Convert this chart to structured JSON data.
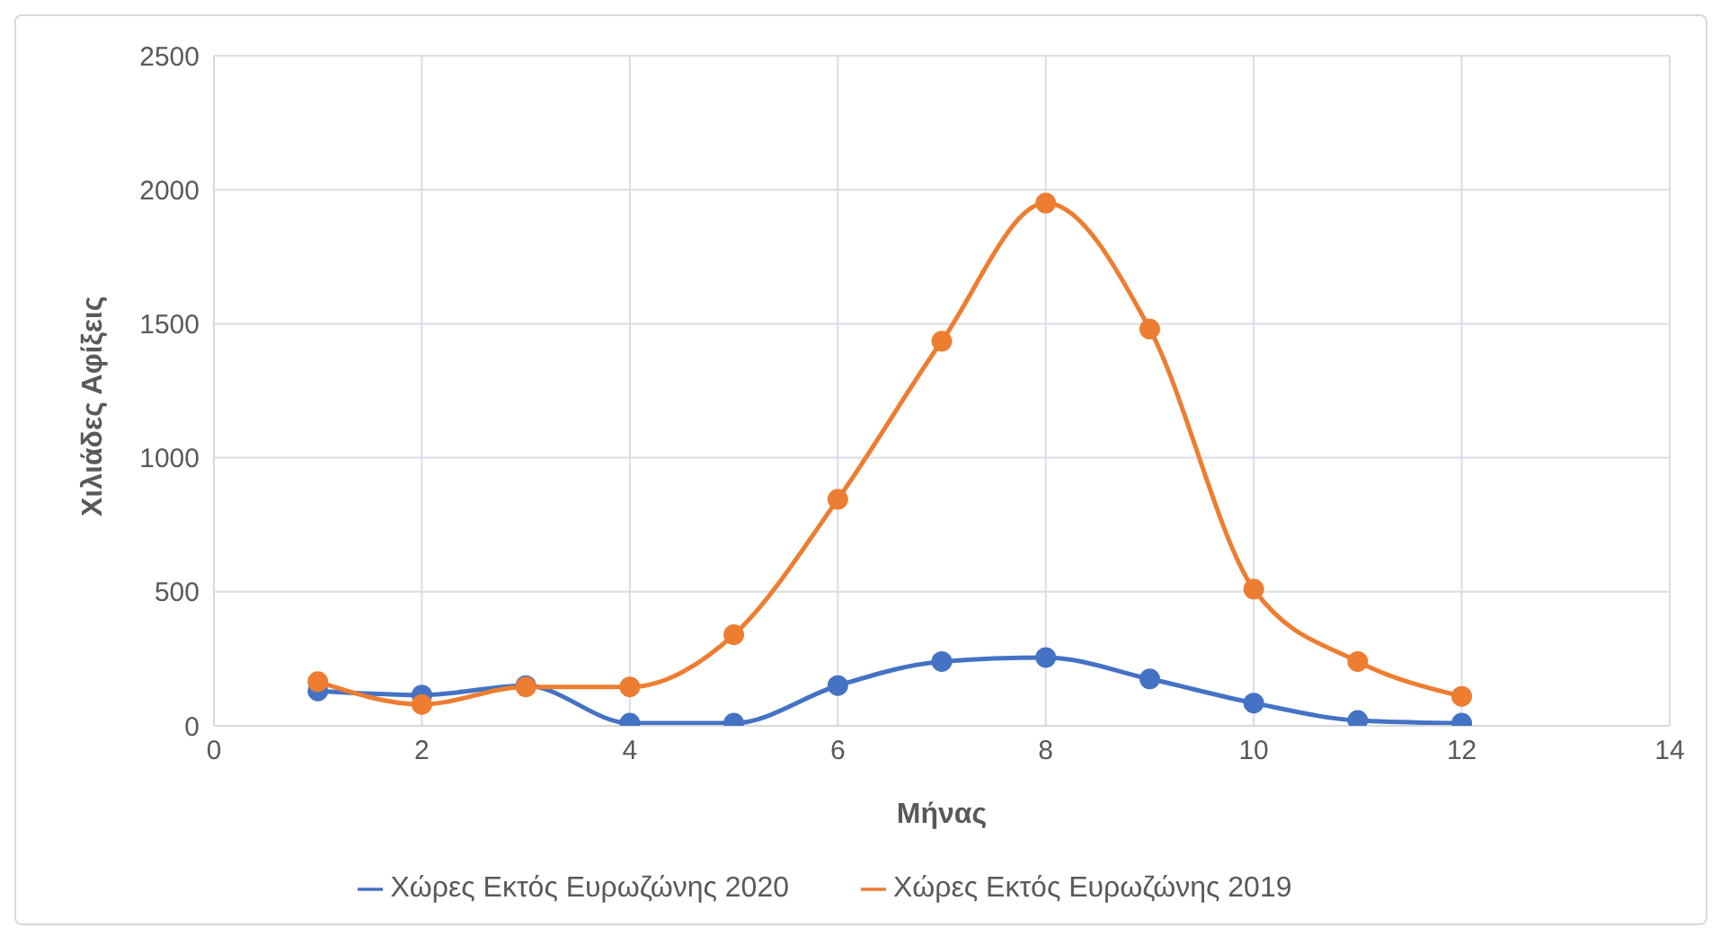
{
  "chart_data": {
    "type": "line",
    "xlabel": "Μήνας",
    "ylabel": "Χιλιάδες Αφίξεις",
    "x": [
      1,
      2,
      3,
      4,
      5,
      6,
      7,
      8,
      9,
      10,
      11,
      12
    ],
    "series": [
      {
        "name": "Χώρες Εκτός Ευρωζώνης 2020",
        "color": "#4472c4",
        "values": [
          130,
          115,
          150,
          10,
          10,
          150,
          240,
          255,
          175,
          85,
          20,
          10
        ]
      },
      {
        "name": "Χώρες Εκτός Ευρωζώνης 2019",
        "color": "#ed7d31",
        "values": [
          165,
          80,
          145,
          145,
          340,
          845,
          1435,
          1950,
          1480,
          510,
          240,
          110
        ]
      }
    ],
    "xlim": [
      0,
      14
    ],
    "xticks": [
      0,
      2,
      4,
      6,
      8,
      10,
      12,
      14
    ],
    "ylim": [
      0,
      2500
    ],
    "yticks": [
      0,
      500,
      1000,
      1500,
      2000,
      2500
    ],
    "grid": true,
    "legend": "bottom",
    "marker": "circle",
    "line_style": "solid"
  }
}
